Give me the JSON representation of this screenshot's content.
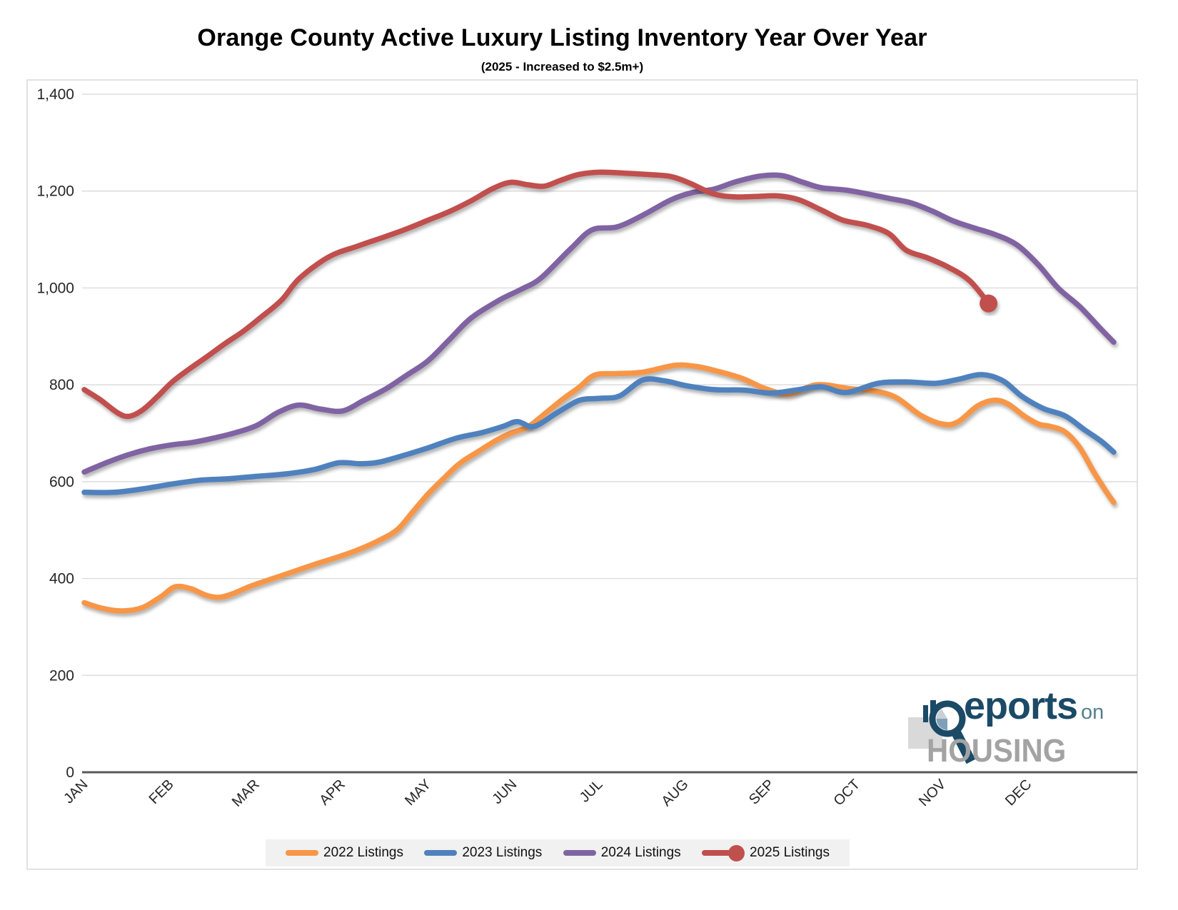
{
  "title": "Orange County Active Luxury Listing Inventory Year Over Year",
  "subtitle": "(2025 - Increased to $2.5m+)",
  "y_axis": {
    "min": 0,
    "max": 1400,
    "step": 200,
    "tick_labels": [
      "0",
      "200",
      "400",
      "600",
      "800",
      "1,000",
      "1,200",
      "1,400"
    ]
  },
  "x_axis": {
    "labels": [
      "JAN",
      "FEB",
      "MAR",
      "APR",
      "MAY",
      "JUN",
      "JUL",
      "AUG",
      "SEP",
      "OCT",
      "NOV",
      "DEC"
    ]
  },
  "logo": {
    "reports_partial": "eports",
    "on_text": "on",
    "housing_text": "HOUSING"
  },
  "chart_data": {
    "type": "line",
    "title": "Orange County Active Luxury Listing Inventory Year Over Year",
    "subtitle": "(2025 - Increased to $2.5m+)",
    "xlabel": "",
    "ylabel": "",
    "x_unit": "month index (0 = start of JAN, 12 = end of DEC), weekly underlying data",
    "ylim": [
      0,
      1400
    ],
    "grid": "horizontal",
    "legend_position": "bottom",
    "axis_color": "#595959",
    "gridline_color": "#D6D6D6",
    "series": [
      {
        "name": "2022 Listings",
        "color": "#F79646",
        "end_marker": false,
        "points": [
          [
            0,
            350
          ],
          [
            0.22,
            338
          ],
          [
            0.45,
            333
          ],
          [
            0.68,
            340
          ],
          [
            0.89,
            362
          ],
          [
            1.06,
            383
          ],
          [
            1.24,
            379
          ],
          [
            1.41,
            366
          ],
          [
            1.56,
            361
          ],
          [
            1.72,
            368
          ],
          [
            1.95,
            385
          ],
          [
            2.2,
            400
          ],
          [
            2.45,
            415
          ],
          [
            2.7,
            430
          ],
          [
            2.95,
            444
          ],
          [
            3.19,
            459
          ],
          [
            3.44,
            479
          ],
          [
            3.65,
            501
          ],
          [
            3.84,
            540
          ],
          [
            4.01,
            575
          ],
          [
            4.18,
            605
          ],
          [
            4.38,
            638
          ],
          [
            4.59,
            662
          ],
          [
            4.8,
            685
          ],
          [
            4.97,
            700
          ],
          [
            5.17,
            713
          ],
          [
            5.38,
            742
          ],
          [
            5.59,
            772
          ],
          [
            5.77,
            795
          ],
          [
            5.95,
            820
          ],
          [
            6.21,
            823
          ],
          [
            6.51,
            826
          ],
          [
            6.88,
            840
          ],
          [
            7.13,
            838
          ],
          [
            7.38,
            828
          ],
          [
            7.67,
            813
          ],
          [
            7.94,
            792
          ],
          [
            8.21,
            781
          ],
          [
            8.54,
            800
          ],
          [
            8.92,
            792
          ],
          [
            9.21,
            787
          ],
          [
            9.46,
            774
          ],
          [
            9.75,
            737
          ],
          [
            10,
            719
          ],
          [
            10.18,
            723
          ],
          [
            10.41,
            756
          ],
          [
            10.6,
            768
          ],
          [
            10.76,
            761
          ],
          [
            10.96,
            735
          ],
          [
            11.12,
            719
          ],
          [
            11.26,
            714
          ],
          [
            11.43,
            703
          ],
          [
            11.6,
            671
          ],
          [
            11.76,
            622
          ],
          [
            11.91,
            580
          ],
          [
            12,
            557
          ]
        ]
      },
      {
        "name": "2023 Listings",
        "color": "#4F81BD",
        "end_marker": false,
        "points": [
          [
            0,
            578
          ],
          [
            0.35,
            578
          ],
          [
            0.68,
            585
          ],
          [
            1.02,
            595
          ],
          [
            1.35,
            603
          ],
          [
            1.68,
            606
          ],
          [
            2.01,
            611
          ],
          [
            2.35,
            616
          ],
          [
            2.68,
            625
          ],
          [
            2.97,
            639
          ],
          [
            3.22,
            637
          ],
          [
            3.43,
            640
          ],
          [
            3.72,
            654
          ],
          [
            4.01,
            670
          ],
          [
            4.34,
            690
          ],
          [
            4.63,
            701
          ],
          [
            4.88,
            714
          ],
          [
            5.05,
            724
          ],
          [
            5.24,
            714
          ],
          [
            5.51,
            742
          ],
          [
            5.77,
            768
          ],
          [
            6.01,
            772
          ],
          [
            6.24,
            777
          ],
          [
            6.51,
            810
          ],
          [
            6.77,
            808
          ],
          [
            7.02,
            798
          ],
          [
            7.34,
            790
          ],
          [
            7.69,
            789
          ],
          [
            8,
            783
          ],
          [
            8.29,
            789
          ],
          [
            8.59,
            796
          ],
          [
            8.88,
            784
          ],
          [
            9.25,
            803
          ],
          [
            9.58,
            806
          ],
          [
            9.92,
            803
          ],
          [
            10.18,
            811
          ],
          [
            10.46,
            821
          ],
          [
            10.71,
            808
          ],
          [
            10.93,
            776
          ],
          [
            11.18,
            751
          ],
          [
            11.43,
            736
          ],
          [
            11.66,
            707
          ],
          [
            11.85,
            684
          ],
          [
            12,
            661
          ]
        ]
      },
      {
        "name": "2024 Listings",
        "color": "#8064A2",
        "end_marker": false,
        "points": [
          [
            0,
            620
          ],
          [
            0.27,
            640
          ],
          [
            0.52,
            656
          ],
          [
            0.77,
            668
          ],
          [
            1.02,
            676
          ],
          [
            1.26,
            681
          ],
          [
            1.51,
            690
          ],
          [
            1.76,
            701
          ],
          [
            2.01,
            716
          ],
          [
            2.26,
            743
          ],
          [
            2.5,
            758
          ],
          [
            2.75,
            750
          ],
          [
            3.01,
            746
          ],
          [
            3.26,
            768
          ],
          [
            3.51,
            791
          ],
          [
            3.76,
            820
          ],
          [
            4.01,
            850
          ],
          [
            4.26,
            894
          ],
          [
            4.51,
            938
          ],
          [
            4.84,
            975
          ],
          [
            5.09,
            997
          ],
          [
            5.32,
            1020
          ],
          [
            5.67,
            1081
          ],
          [
            5.92,
            1120
          ],
          [
            6.21,
            1126
          ],
          [
            6.51,
            1150
          ],
          [
            6.84,
            1182
          ],
          [
            7.09,
            1197
          ],
          [
            7.34,
            1204
          ],
          [
            7.59,
            1219
          ],
          [
            7.88,
            1231
          ],
          [
            8.13,
            1232
          ],
          [
            8.38,
            1218
          ],
          [
            8.59,
            1207
          ],
          [
            8.88,
            1202
          ],
          [
            9.13,
            1194
          ],
          [
            9.38,
            1185
          ],
          [
            9.63,
            1176
          ],
          [
            9.88,
            1159
          ],
          [
            10.12,
            1139
          ],
          [
            10.37,
            1124
          ],
          [
            10.62,
            1110
          ],
          [
            10.87,
            1089
          ],
          [
            11.12,
            1048
          ],
          [
            11.35,
            1000
          ],
          [
            11.6,
            962
          ],
          [
            11.83,
            919
          ],
          [
            12,
            888
          ]
        ]
      },
      {
        "name": "2025 Listings",
        "color": "#C0504D",
        "end_marker": true,
        "points": [
          [
            0,
            790
          ],
          [
            0.18,
            770
          ],
          [
            0.39,
            742
          ],
          [
            0.52,
            735
          ],
          [
            0.68,
            748
          ],
          [
            0.85,
            775
          ],
          [
            1.02,
            805
          ],
          [
            1.22,
            832
          ],
          [
            1.43,
            858
          ],
          [
            1.64,
            885
          ],
          [
            1.85,
            910
          ],
          [
            2.05,
            938
          ],
          [
            2.3,
            975
          ],
          [
            2.51,
            1020
          ],
          [
            2.85,
            1064
          ],
          [
            3.18,
            1086
          ],
          [
            3.51,
            1106
          ],
          [
            3.76,
            1122
          ],
          [
            4.01,
            1140
          ],
          [
            4.26,
            1158
          ],
          [
            4.51,
            1180
          ],
          [
            4.76,
            1205
          ],
          [
            4.97,
            1218
          ],
          [
            5.17,
            1213
          ],
          [
            5.36,
            1210
          ],
          [
            5.55,
            1222
          ],
          [
            5.76,
            1234
          ],
          [
            6.01,
            1239
          ],
          [
            6.3,
            1237
          ],
          [
            6.59,
            1234
          ],
          [
            6.84,
            1230
          ],
          [
            7.05,
            1217
          ],
          [
            7.34,
            1194
          ],
          [
            7.59,
            1188
          ],
          [
            7.84,
            1189
          ],
          [
            8.09,
            1190
          ],
          [
            8.33,
            1182
          ],
          [
            8.59,
            1161
          ],
          [
            8.84,
            1140
          ],
          [
            9.13,
            1129
          ],
          [
            9.38,
            1112
          ],
          [
            9.58,
            1078
          ],
          [
            9.83,
            1062
          ],
          [
            10.08,
            1042
          ],
          [
            10.32,
            1015
          ],
          [
            10.54,
            968
          ]
        ]
      }
    ]
  }
}
